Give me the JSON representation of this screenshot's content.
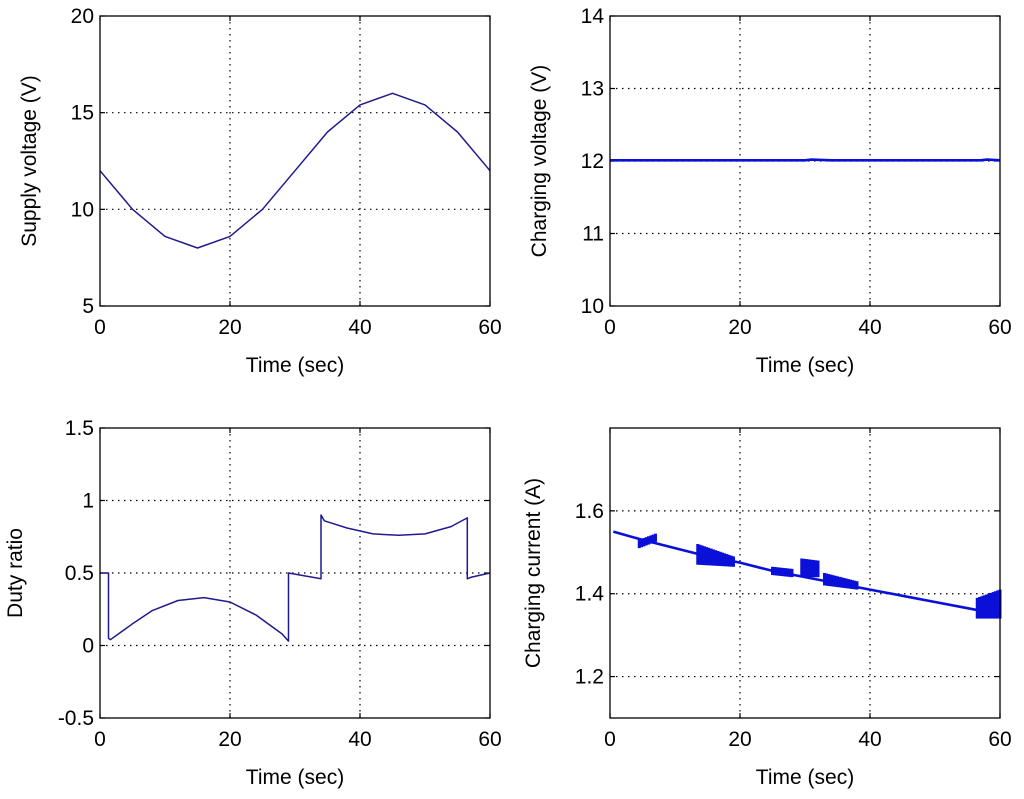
{
  "chart_data": [
    {
      "type": "line",
      "title": "",
      "xlabel": "Time (sec)",
      "ylabel": "Supply voltage (V)",
      "xlim": [
        0,
        60
      ],
      "ylim": [
        5,
        20
      ],
      "xticks": [
        0,
        20,
        40,
        60
      ],
      "yticks": [
        5,
        10,
        15,
        20
      ],
      "grid": true,
      "series": [
        {
          "name": "Supply voltage",
          "x": [
            0,
            5,
            10,
            15,
            20,
            25,
            30,
            35,
            40,
            45,
            50,
            55,
            60
          ],
          "y": [
            12,
            10,
            8.6,
            8.0,
            8.6,
            10,
            12,
            14,
            15.4,
            16,
            15.4,
            14,
            12
          ]
        }
      ]
    },
    {
      "type": "line",
      "title": "",
      "xlabel": "Time (sec)",
      "ylabel": "Charging voltage (V)",
      "xlim": [
        0,
        60
      ],
      "ylim": [
        10,
        14
      ],
      "xticks": [
        0,
        20,
        40,
        60
      ],
      "yticks": [
        10,
        11,
        12,
        13,
        14
      ],
      "grid": true,
      "series": [
        {
          "name": "Charging voltage",
          "x": [
            0,
            30,
            31,
            34,
            57,
            58,
            60
          ],
          "y": [
            12.01,
            12.01,
            12.02,
            12.01,
            12.01,
            12.02,
            12.01
          ]
        }
      ]
    },
    {
      "type": "line",
      "title": "",
      "xlabel": "Time (sec)",
      "ylabel": "Duty ratio",
      "xlim": [
        0,
        60
      ],
      "ylim": [
        -0.5,
        1.5
      ],
      "xticks": [
        0,
        20,
        40,
        60
      ],
      "yticks": [
        -0.5,
        0,
        0.5,
        1,
        1.5
      ],
      "grid": true,
      "series": [
        {
          "name": "Duty ratio",
          "x": [
            0,
            1.3,
            1.3,
            1.6,
            5,
            8,
            12,
            16,
            20,
            24,
            28,
            29,
            29,
            34,
            34,
            34.5,
            38,
            42,
            46,
            50,
            54,
            56.5,
            56.5,
            57,
            60
          ],
          "y": [
            0.5,
            0.5,
            0.05,
            0.04,
            0.15,
            0.24,
            0.31,
            0.33,
            0.3,
            0.21,
            0.08,
            0.03,
            0.5,
            0.46,
            0.9,
            0.86,
            0.81,
            0.77,
            0.76,
            0.77,
            0.82,
            0.88,
            0.46,
            0.47,
            0.5
          ]
        }
      ]
    },
    {
      "type": "line",
      "title": "",
      "xlabel": "Time (sec)",
      "ylabel": "Charging current (A)",
      "xlim": [
        0,
        60
      ],
      "ylim": [
        1.1,
        1.8
      ],
      "xticks": [
        0,
        20,
        40,
        60
      ],
      "yticks": [
        1.2,
        1.4,
        1.6
      ],
      "grid": true,
      "series": [
        {
          "name": "Charging current",
          "x": [
            0.5,
            5,
            10,
            15,
            20,
            25,
            30,
            35,
            40,
            45,
            50,
            55,
            60
          ],
          "y": [
            1.55,
            1.53,
            1.51,
            1.49,
            1.475,
            1.455,
            1.44,
            1.425,
            1.41,
            1.395,
            1.38,
            1.365,
            1.35
          ]
        }
      ],
      "bursts": [
        {
          "x": [
            4.5,
            7
          ],
          "low": [
            1.51,
            1.525
          ],
          "high": [
            1.53,
            1.545
          ]
        },
        {
          "x": [
            13.5,
            19
          ],
          "low": [
            1.47,
            1.465
          ],
          "high": [
            1.52,
            1.49
          ]
        },
        {
          "x": [
            25,
            28
          ],
          "low": [
            1.445,
            1.44
          ],
          "high": [
            1.465,
            1.46
          ]
        },
        {
          "x": [
            29.5,
            32
          ],
          "low": [
            1.44,
            1.44
          ],
          "high": [
            1.485,
            1.48
          ]
        },
        {
          "x": [
            33,
            38
          ],
          "low": [
            1.42,
            1.41
          ],
          "high": [
            1.45,
            1.43
          ]
        },
        {
          "x": [
            56.5,
            60
          ],
          "low": [
            1.34,
            1.34
          ],
          "high": [
            1.39,
            1.41
          ]
        }
      ]
    }
  ]
}
